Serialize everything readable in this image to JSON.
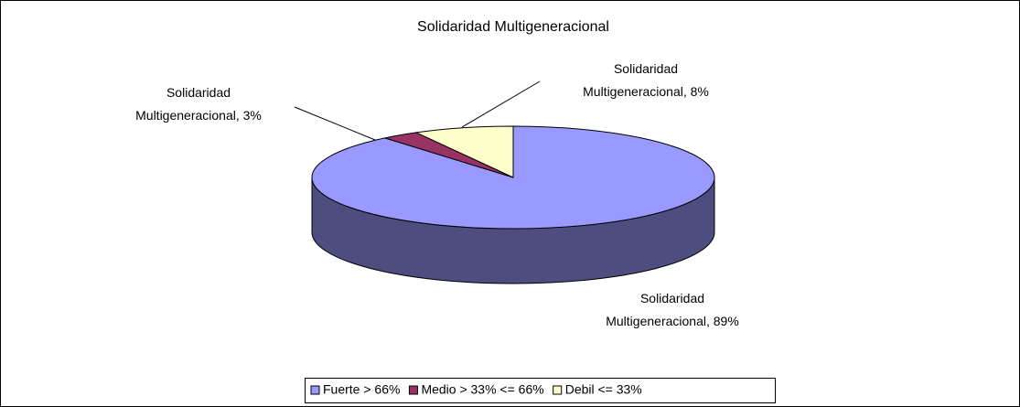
{
  "chart_data": {
    "type": "pie3d",
    "title": "Solidaridad Multigeneracional",
    "categories": [
      "Fuerte > 66%",
      "Medio > 33% <= 66%",
      "Debil <= 33%"
    ],
    "values": [
      89,
      3,
      8
    ],
    "value_labels": [
      "Solidaridad Multigeneracional, 89%",
      "Solidaridad Multigeneracional, 3%",
      "Solidaridad Multigeneracional, 8%"
    ],
    "colors": [
      "#9999ff",
      "#993366",
      "#ffffcc"
    ],
    "legend": "bottom"
  }
}
